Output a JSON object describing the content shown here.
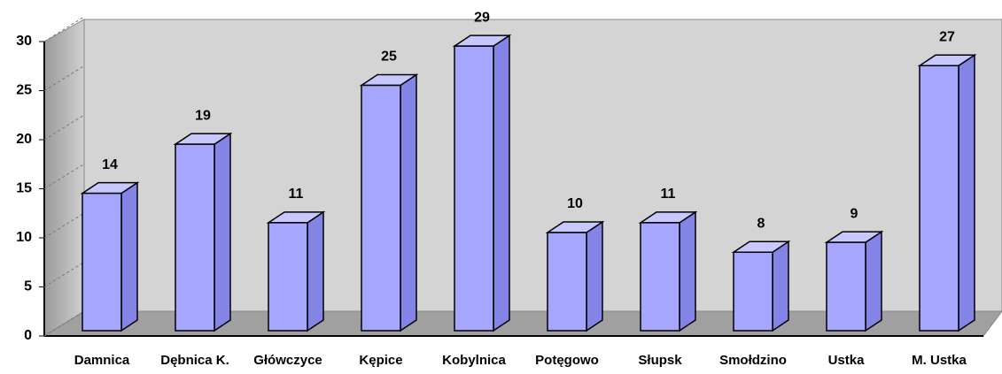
{
  "chart_data": {
    "type": "bar3d",
    "categories": [
      "Damnica",
      "Dębnica K.",
      "Główczyce",
      "Kępice",
      "Kobylnica",
      "Potęgowo",
      "Słupsk",
      "Smołdzino",
      "Ustka",
      "M. Ustka"
    ],
    "values": [
      14,
      19,
      11,
      25,
      29,
      10,
      11,
      8,
      9,
      27
    ],
    "color": "#a6a6ff",
    "ylim": [
      0,
      30
    ],
    "yticks": [
      0,
      5,
      10,
      15,
      20,
      25,
      30
    ],
    "grid": true
  }
}
